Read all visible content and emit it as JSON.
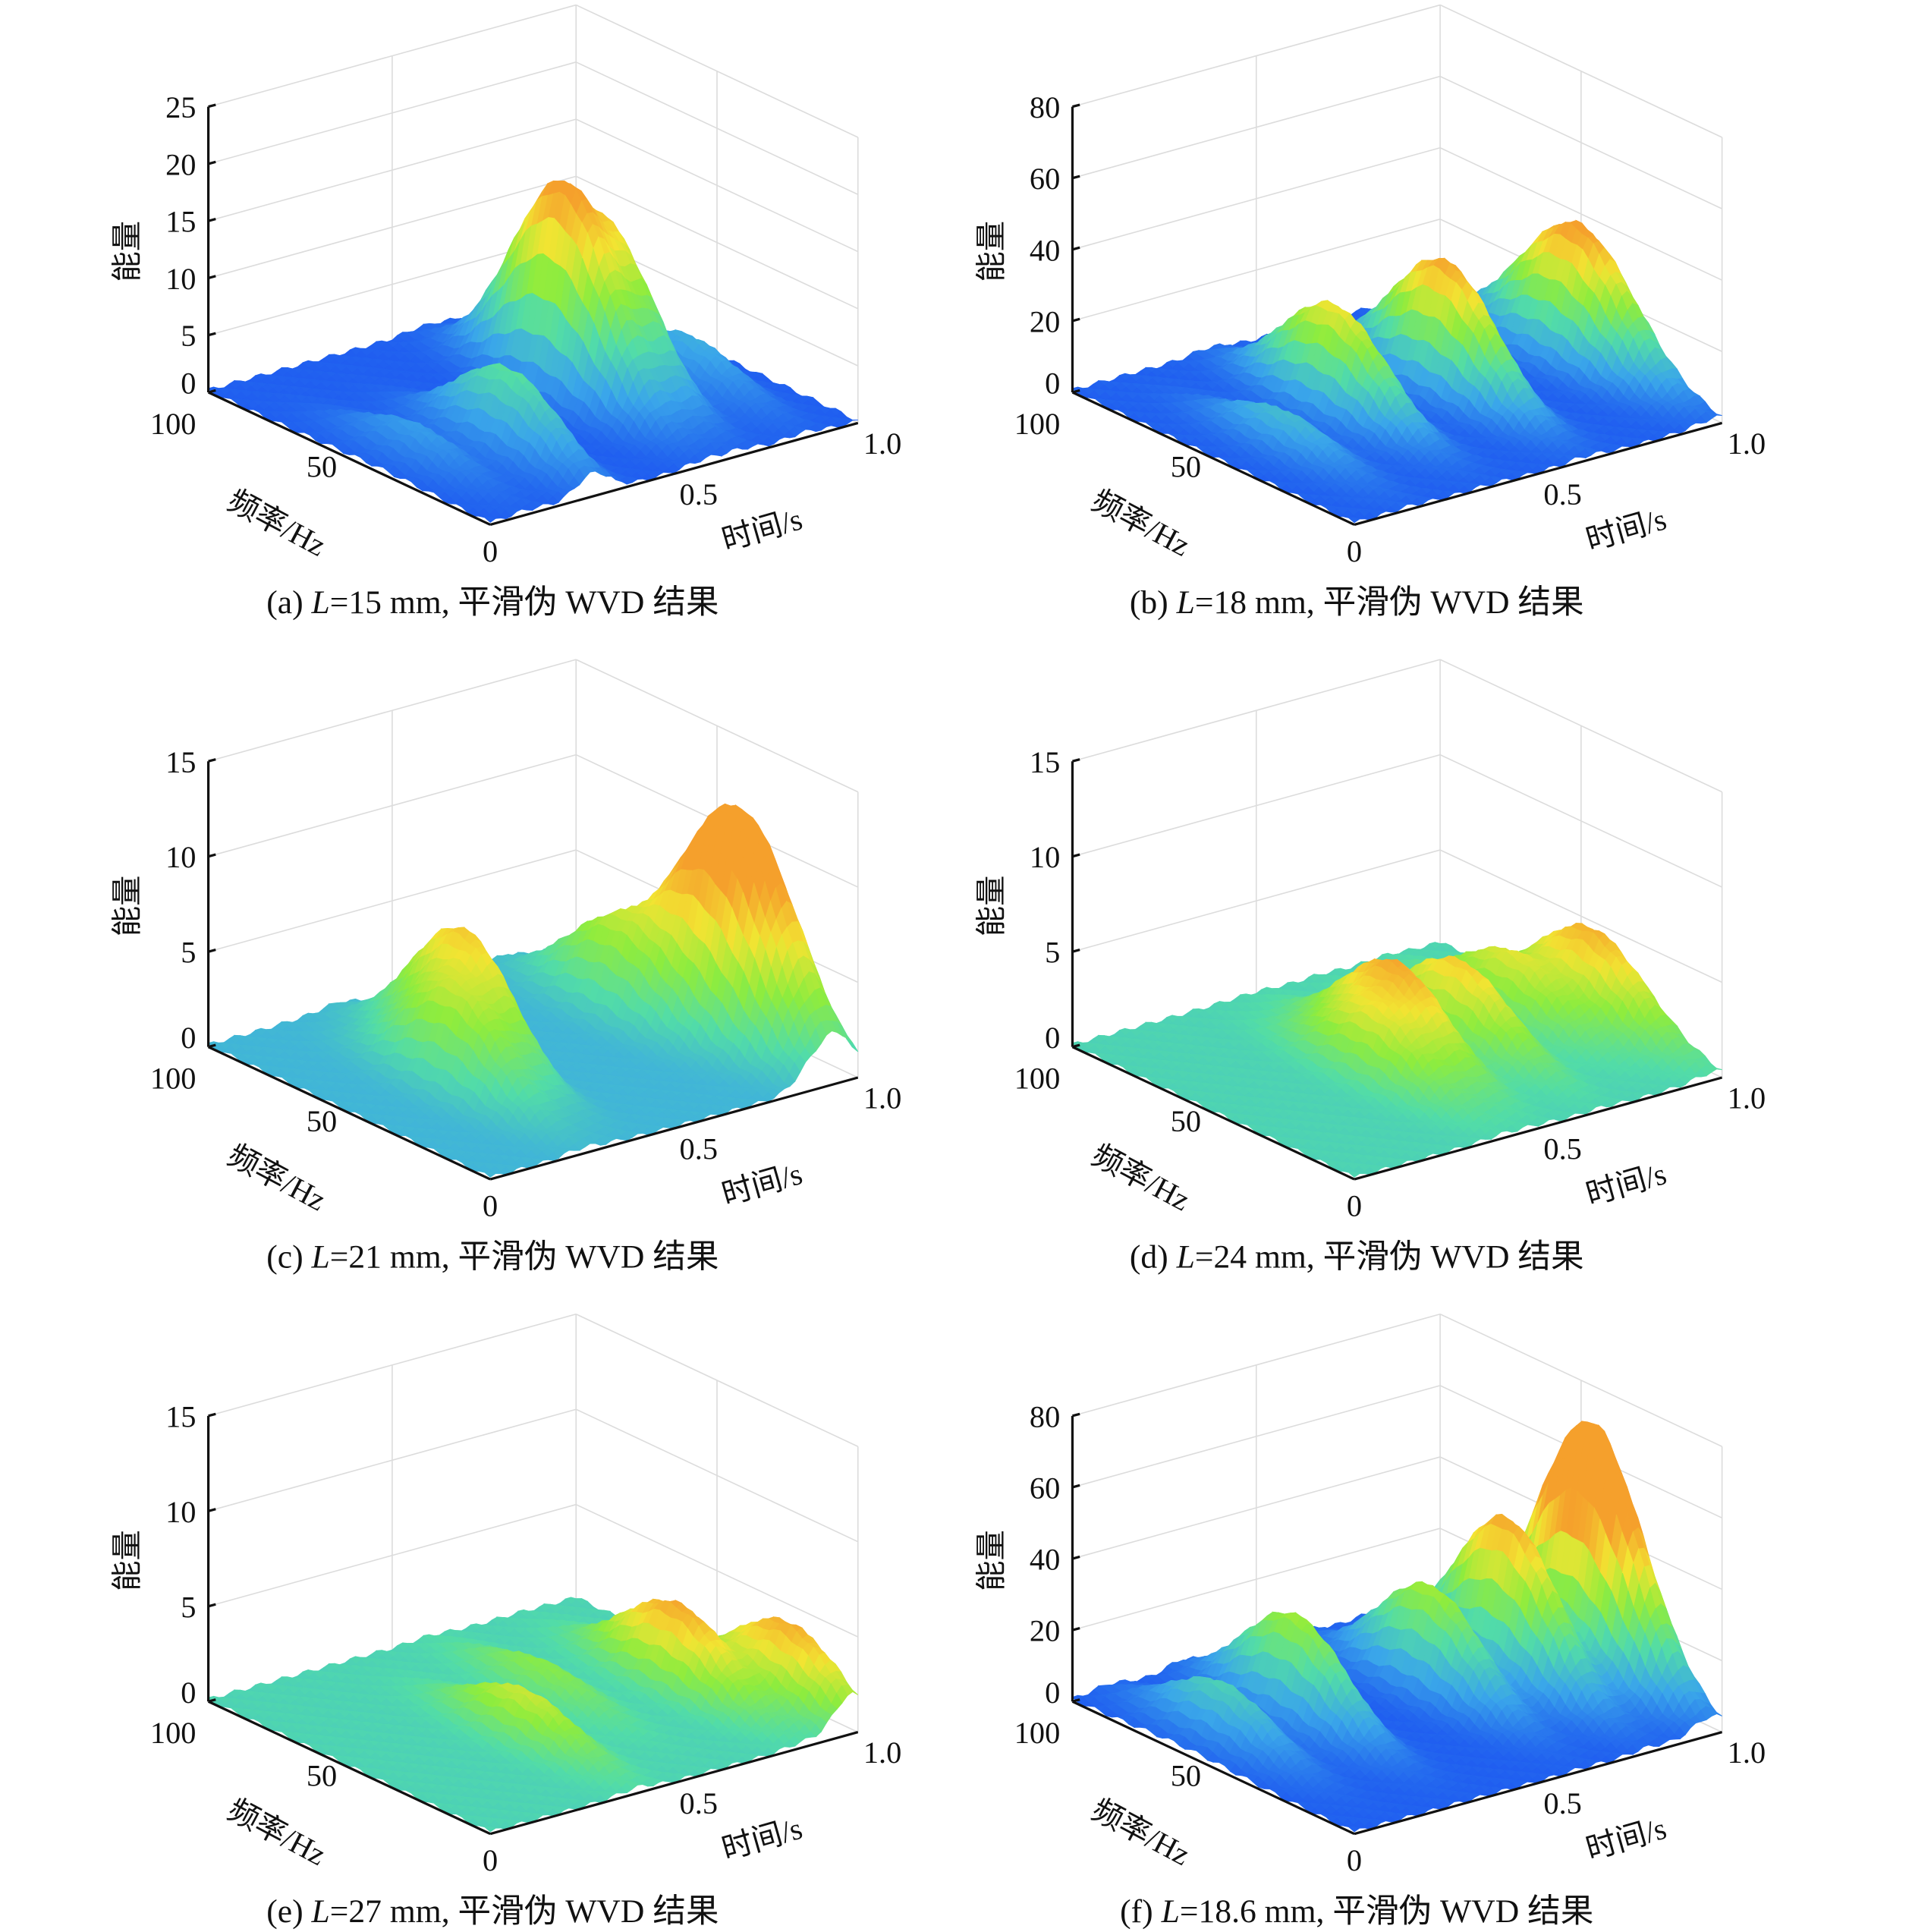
{
  "chart_data": [
    {
      "type": "surface",
      "caption": {
        "prefix": "(a) ",
        "var": "L",
        "rest": "=15 mm, 平滑伪 WVD 结果"
      },
      "xlabel": "时间/s",
      "ylabel": "频率/Hz",
      "zlabel": "能量",
      "time_ticks": [
        "0",
        "0.5",
        "1.0"
      ],
      "freq_ticks": [
        "50",
        "100"
      ],
      "zlim": [
        0,
        25
      ],
      "z_ticks": [
        "0",
        "5",
        "10",
        "15",
        "20",
        "25"
      ],
      "clim": [
        0,
        18
      ],
      "peaks": [
        {
          "time": 0.58,
          "frequency": 50,
          "energy": 17.5
        },
        {
          "time": 0.68,
          "frequency": 48,
          "energy": 13.5
        },
        {
          "time": 0.28,
          "frequency": 30,
          "energy": 7.5
        },
        {
          "time": 0.85,
          "frequency": 40,
          "energy": 4
        },
        {
          "time": 0.1,
          "frequency": 40,
          "energy": 3
        }
      ]
    },
    {
      "type": "surface",
      "caption": {
        "prefix": "(b) ",
        "var": "L",
        "rest": "=18 mm, 平滑伪 WVD 结果"
      },
      "xlabel": "时间/s",
      "ylabel": "频率/Hz",
      "zlabel": "能量",
      "time_ticks": [
        "0",
        "0.5",
        "1.0"
      ],
      "freq_ticks": [
        "50",
        "100"
      ],
      "zlim": [
        0,
        80
      ],
      "z_ticks": [
        "0",
        "20",
        "40",
        "60",
        "80"
      ],
      "clim": [
        0,
        38
      ],
      "peaks": [
        {
          "time": 0.37,
          "frequency": 55,
          "energy": 30
        },
        {
          "time": 0.63,
          "frequency": 50,
          "energy": 37
        },
        {
          "time": 0.93,
          "frequency": 52,
          "energy": 15
        },
        {
          "time": 0.98,
          "frequency": 45,
          "energy": 30
        },
        {
          "time": 0.15,
          "frequency": 45,
          "energy": 10
        }
      ]
    },
    {
      "type": "surface",
      "caption": {
        "prefix": "(c) ",
        "var": "L",
        "rest": "=21 mm, 平滑伪 WVD 结果"
      },
      "xlabel": "时间/s",
      "ylabel": "频率/Hz",
      "zlabel": "能量",
      "time_ticks": [
        "0",
        "0.5",
        "1.0"
      ],
      "freq_ticks": [
        "50",
        "100"
      ],
      "zlim": [
        0,
        15
      ],
      "z_ticks": [
        "0",
        "5",
        "10",
        "15"
      ],
      "clim": [
        -3,
        9
      ],
      "peaks": [
        {
          "time": 0.35,
          "frequency": 55,
          "energy": 7.0
        },
        {
          "time": 0.25,
          "frequency": 45,
          "energy": 5.0
        },
        {
          "time": 0.8,
          "frequency": 60,
          "energy": 4.6
        },
        {
          "time": 0.95,
          "frequency": 30,
          "energy": 8.7
        },
        {
          "time": 0.88,
          "frequency": 35,
          "energy": 8.1
        }
      ]
    },
    {
      "type": "surface",
      "caption": {
        "prefix": "(d) ",
        "var": "L",
        "rest": "=24 mm, 平滑伪 WVD 结果"
      },
      "xlabel": "时间/s",
      "ylabel": "频率/Hz",
      "zlabel": "能量",
      "time_ticks": [
        "0",
        "0.5",
        "1.0"
      ],
      "freq_ticks": [
        "50",
        "100"
      ],
      "zlim": [
        0,
        15
      ],
      "z_ticks": [
        "0",
        "5",
        "10",
        "15"
      ],
      "clim": [
        -3,
        5.5
      ],
      "peaks": [
        {
          "time": 0.4,
          "frequency": 45,
          "energy": 3.2
        },
        {
          "time": 0.5,
          "frequency": 50,
          "energy": 4.9
        },
        {
          "time": 0.67,
          "frequency": 50,
          "energy": 4.3
        },
        {
          "time": 0.85,
          "frequency": 55,
          "energy": 3.3
        },
        {
          "time": 0.97,
          "frequency": 42,
          "energy": 4.9
        }
      ]
    },
    {
      "type": "surface",
      "caption": {
        "prefix": "(e) ",
        "var": "L",
        "rest": "=27 mm, 平滑伪 WVD 结果"
      },
      "xlabel": "时间/s",
      "ylabel": "频率/Hz",
      "zlabel": "能量",
      "time_ticks": [
        "0",
        "0.5",
        "1.0"
      ],
      "freq_ticks": [
        "50",
        "100"
      ],
      "zlim": [
        0,
        15
      ],
      "z_ticks": [
        "0",
        "5",
        "10",
        "15"
      ],
      "clim": [
        -2.5,
        4.6
      ],
      "peaks": [
        {
          "time": 0.4,
          "frequency": 40,
          "energy": 2.5
        },
        {
          "time": 0.85,
          "frequency": 45,
          "energy": 4.3
        },
        {
          "time": 0.98,
          "frequency": 22,
          "energy": 4.2
        },
        {
          "time": 0.6,
          "frequency": 60,
          "energy": 1.5
        }
      ]
    },
    {
      "type": "surface",
      "caption": {
        "prefix": "(f) ",
        "var": "L",
        "rest": "=18.6 mm, 平滑伪 WVD 结果"
      },
      "xlabel": "时间/s",
      "ylabel": "频率/Hz",
      "zlabel": "能量",
      "time_ticks": [
        "0",
        "0.5",
        "1.0"
      ],
      "freq_ticks": [
        "50",
        "100"
      ],
      "zlim": [
        0,
        80
      ],
      "z_ticks": [
        "0",
        "20",
        "40",
        "60",
        "80"
      ],
      "clim": [
        0,
        48
      ],
      "peaks": [
        {
          "time": 0.3,
          "frequency": 60,
          "energy": 30
        },
        {
          "time": 0.1,
          "frequency": 60,
          "energy": 16.5
        },
        {
          "time": 0.63,
          "frequency": 55,
          "energy": 30.5
        },
        {
          "time": 0.8,
          "frequency": 50,
          "energy": 46.5
        },
        {
          "time": 0.98,
          "frequency": 42,
          "energy": 41
        },
        {
          "time": 0.95,
          "frequency": 42,
          "energy": 35
        }
      ]
    }
  ],
  "colormap": [
    "#1f5cf0",
    "#3aa6ea",
    "#52dca8",
    "#8eec3e",
    "#f2e432",
    "#f5a02c"
  ]
}
